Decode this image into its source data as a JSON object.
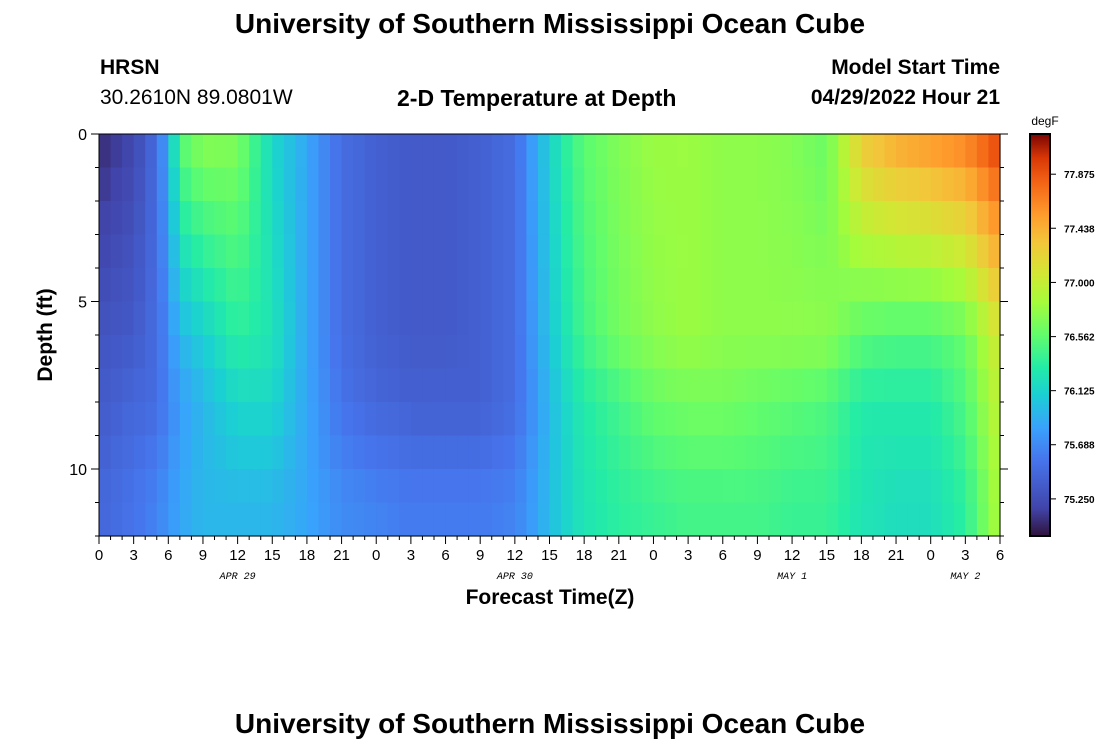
{
  "page": {
    "title": "University of Southern Mississippi Ocean Cube",
    "station_code": "HRSN",
    "station_coords": "30.2610N  89.0801W",
    "plot_title": "2-D Temperature at Depth",
    "model_start_label": "Model Start Time",
    "model_start_value": "04/29/2022 Hour 21",
    "footer_title": "University of Southern Mississippi Ocean Cube"
  },
  "chart_data": {
    "type": "heatmap",
    "title": "2-D Temperature at Depth",
    "xlabel": "Forecast Time(Z)",
    "ylabel": "Depth (ft)",
    "x_tick_labels": [
      "0",
      "3",
      "6",
      "9",
      "12",
      "15",
      "18",
      "21",
      "0",
      "3",
      "6",
      "9",
      "12",
      "15",
      "18",
      "21",
      "0",
      "3",
      "6",
      "9",
      "12",
      "15",
      "18",
      "21",
      "0",
      "3",
      "6"
    ],
    "x_range_hours": [
      0,
      78
    ],
    "date_labels": [
      {
        "label": "APR 29",
        "hour": 12
      },
      {
        "label": "APR 30",
        "hour": 36
      },
      {
        "label": "MAY 1",
        "hour": 60
      },
      {
        "label": "MAY 2",
        "hour": 75
      }
    ],
    "y_tick_labels": [
      "0",
      "5",
      "10"
    ],
    "y_range_ft": [
      0,
      12
    ],
    "y_inverted": true,
    "colorbar": {
      "unit": "degF",
      "tick_labels": [
        "77.875",
        "77.438",
        "77.000",
        "76.562",
        "76.125",
        "75.688",
        "75.250"
      ],
      "range": [
        74.95,
        78.2
      ]
    },
    "depths_ft": [
      0,
      6,
      8,
      11
    ],
    "profiles": [
      {
        "depth_ft": 0,
        "hours": [
          0,
          3,
          5,
          6,
          7,
          9,
          12,
          15,
          18,
          21,
          24,
          27,
          30,
          33,
          36,
          38,
          40,
          42,
          45,
          48,
          51,
          54,
          57,
          60,
          63,
          66,
          69,
          72,
          75,
          78
        ],
        "values": [
          75.05,
          75.2,
          75.5,
          75.9,
          76.55,
          76.75,
          76.7,
          76.15,
          75.85,
          75.5,
          75.4,
          75.35,
          75.35,
          75.4,
          75.5,
          75.9,
          76.3,
          76.55,
          76.7,
          76.8,
          76.8,
          76.75,
          76.75,
          76.7,
          76.6,
          77.3,
          77.5,
          77.6,
          77.7,
          78.0
        ]
      },
      {
        "depth_ft": 6,
        "hours": [
          0,
          3,
          5,
          6,
          7,
          9,
          12,
          15,
          18,
          21,
          24,
          27,
          30,
          33,
          36,
          38,
          40,
          42,
          45,
          48,
          51,
          54,
          57,
          60,
          63,
          66,
          69,
          72,
          75,
          78
        ],
        "values": [
          75.3,
          75.35,
          75.5,
          75.7,
          75.95,
          76.1,
          76.35,
          76.25,
          75.85,
          75.5,
          75.4,
          75.35,
          75.35,
          75.4,
          75.5,
          75.85,
          76.2,
          76.45,
          76.65,
          76.75,
          76.8,
          76.75,
          76.75,
          76.75,
          76.75,
          76.55,
          76.5,
          76.5,
          76.6,
          77.1
        ]
      },
      {
        "depth_ft": 8,
        "hours": [
          0,
          3,
          5,
          6,
          7,
          9,
          12,
          15,
          18,
          21,
          24,
          27,
          30,
          33,
          36,
          38,
          40,
          42,
          45,
          48,
          51,
          54,
          57,
          60,
          63,
          66,
          69,
          72,
          75,
          78
        ],
        "values": [
          75.35,
          75.45,
          75.5,
          75.65,
          75.8,
          75.95,
          76.15,
          76.15,
          75.85,
          75.55,
          75.45,
          75.4,
          75.4,
          75.4,
          75.5,
          75.8,
          76.1,
          76.3,
          76.45,
          76.6,
          76.65,
          76.65,
          76.6,
          76.55,
          76.5,
          76.3,
          76.3,
          76.3,
          76.5,
          77.0
        ]
      },
      {
        "depth_ft": 11,
        "hours": [
          0,
          3,
          5,
          6,
          7,
          9,
          12,
          15,
          18,
          21,
          24,
          27,
          30,
          33,
          36,
          38,
          40,
          42,
          45,
          48,
          51,
          54,
          57,
          60,
          63,
          66,
          69,
          72,
          75,
          78
        ],
        "values": [
          75.45,
          75.55,
          75.65,
          75.75,
          75.85,
          75.95,
          75.95,
          75.95,
          75.85,
          75.7,
          75.65,
          75.6,
          75.6,
          75.6,
          75.65,
          75.85,
          76.1,
          76.25,
          76.35,
          76.4,
          76.45,
          76.45,
          76.45,
          76.4,
          76.4,
          76.25,
          76.2,
          76.2,
          76.35,
          76.9
        ]
      }
    ]
  }
}
